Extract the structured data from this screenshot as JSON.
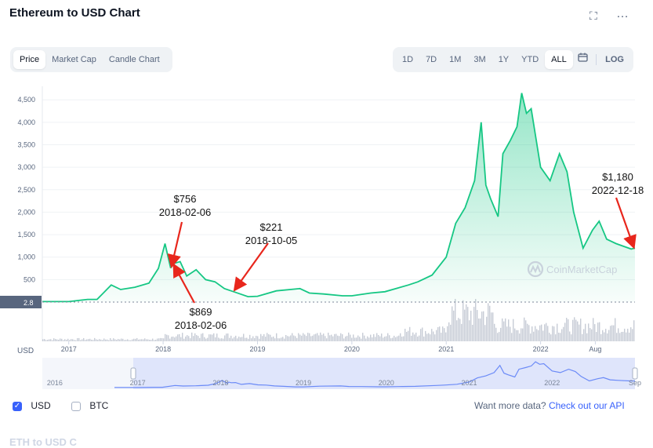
{
  "header": {
    "title": "Ethereum to USD Chart",
    "expand_icon": "fullscreen-icon",
    "more_icon": "more-horizontal-icon"
  },
  "view_tabs": [
    {
      "label": "Price",
      "active": true
    },
    {
      "label": "Market Cap",
      "active": false
    },
    {
      "label": "Candle Chart",
      "active": false
    }
  ],
  "range_tabs": [
    {
      "label": "1D",
      "active": false
    },
    {
      "label": "7D",
      "active": false
    },
    {
      "label": "1M",
      "active": false
    },
    {
      "label": "3M",
      "active": false
    },
    {
      "label": "1Y",
      "active": false
    },
    {
      "label": "YTD",
      "active": false
    },
    {
      "label": "ALL",
      "active": true
    }
  ],
  "calendar_icon": "calendar-icon",
  "log_label": "LOG",
  "colors": {
    "line": "#16c784",
    "annotation": "#e8261c",
    "navigator_fill": "#dfe5fb",
    "navigator_line": "#6b8af7",
    "volume": "#b9bfcc"
  },
  "chart_data": {
    "type": "area",
    "y_ticks": [
      "4,500",
      "4,000",
      "3,500",
      "3,000",
      "2,500",
      "2,000",
      "1,500",
      "1,000",
      "500"
    ],
    "ylim": [
      0,
      4800
    ],
    "x_ticks": [
      {
        "label": "2017",
        "t": 2017.0
      },
      {
        "label": "2018",
        "t": 2018.0
      },
      {
        "label": "2019",
        "t": 2019.0
      },
      {
        "label": "2020",
        "t": 2020.0
      },
      {
        "label": "2021",
        "t": 2021.0
      },
      {
        "label": "2022",
        "t": 2022.0
      },
      {
        "label": "Aug",
        "t": 2022.58
      }
    ],
    "xlim": [
      2016.72,
      2023.0
    ],
    "current_label": "2.8",
    "y_axis_unit": "USD",
    "watermark": "CoinMarketCap",
    "series": [
      {
        "x": [
          2016.72,
          2016.9,
          2017.0,
          2017.2,
          2017.3,
          2017.45,
          2017.55,
          2017.7,
          2017.85,
          2017.95,
          2018.02,
          2018.08,
          2018.1,
          2018.13,
          2018.18,
          2018.25,
          2018.35,
          2018.45,
          2018.55,
          2018.65,
          2018.76,
          2018.9,
          2019.0,
          2019.2,
          2019.45,
          2019.55,
          2019.7,
          2019.9,
          2020.0,
          2020.2,
          2020.35,
          2020.6,
          2020.7,
          2020.85,
          2021.0,
          2021.1,
          2021.2,
          2021.3,
          2021.37,
          2021.42,
          2021.47,
          2021.55,
          2021.6,
          2021.68,
          2021.75,
          2021.8,
          2021.85,
          2021.9,
          2022.0,
          2022.1,
          2022.2,
          2022.28,
          2022.35,
          2022.45,
          2022.55,
          2022.62,
          2022.7,
          2022.8,
          2022.96,
          2023.0
        ],
        "y": [
          10,
          10,
          10,
          60,
          60,
          380,
          280,
          330,
          420,
          750,
          1300,
          756,
          980,
          869,
          900,
          580,
          720,
          500,
          450,
          300,
          221,
          120,
          130,
          250,
          300,
          200,
          180,
          140,
          140,
          200,
          230,
          380,
          450,
          600,
          1000,
          1750,
          2100,
          2700,
          4000,
          2600,
          2300,
          1900,
          3300,
          3600,
          3900,
          4650,
          4200,
          4300,
          3000,
          2700,
          3300,
          2900,
          2000,
          1200,
          1600,
          1800,
          1400,
          1300,
          1180,
          1200
        ]
      }
    ],
    "annotations": [
      {
        "value": "$756",
        "date": "2018-02-06"
      },
      {
        "value": "$869",
        "date": "2018-02-06"
      },
      {
        "value": "$221",
        "date": "2018-10-05"
      },
      {
        "value": "$1,180",
        "date": "2022-12-18"
      }
    ],
    "navigator_ticks": [
      "2016",
      "2017",
      "2018",
      "2019",
      "2020",
      "2021",
      "2022",
      "Sep"
    ]
  },
  "footer": {
    "usd_label": "USD",
    "btc_label": "BTC",
    "more_data_text": "Want more data?",
    "api_link": "Check out our API",
    "cut_heading": "ETH to USD C"
  }
}
